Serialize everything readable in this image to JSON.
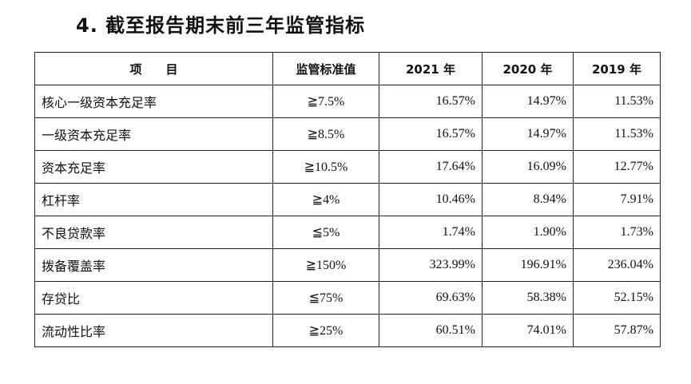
{
  "title": "4. 截至报告期末前三年监管指标",
  "table": {
    "header": [
      "项　　目",
      "监管标准值",
      "2021 年",
      "2020 年",
      "2019 年"
    ],
    "rows": [
      [
        "核心一级资本充足率",
        "≧7.5%",
        "16.57%",
        "14.97%",
        "11.53%"
      ],
      [
        "一级资本充足率",
        "≧8.5%",
        "16.57%",
        "14.97%",
        "11.53%"
      ],
      [
        "资本充足率",
        "≧10.5%",
        "17.64%",
        "16.09%",
        "12.77%"
      ],
      [
        "杠杆率",
        "≧4%",
        "10.46%",
        "8.94%",
        "7.91%"
      ],
      [
        "不良贷款率",
        "≦5%",
        "1.74%",
        "1.90%",
        "1.73%"
      ],
      [
        "拨备覆盖率",
        "≧150%",
        "323.99%",
        "196.91%",
        "236.04%"
      ],
      [
        "存贷比",
        "≦75%",
        "69.63%",
        "58.38%",
        "52.15%"
      ],
      [
        "流动性比率",
        "≧25%",
        "60.51%",
        "74.01%",
        "57.87%"
      ]
    ]
  }
}
